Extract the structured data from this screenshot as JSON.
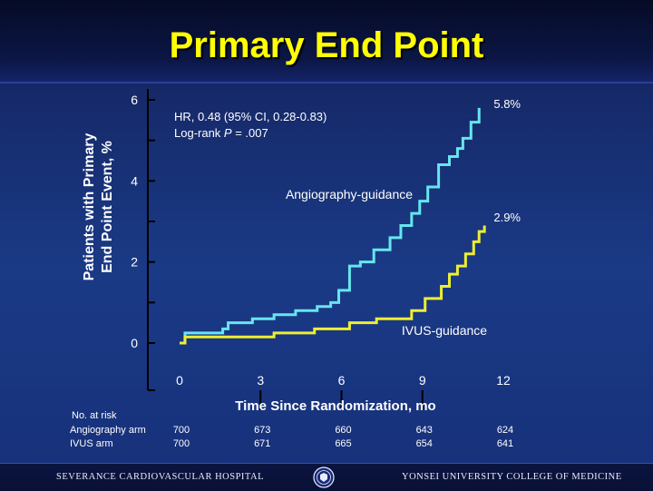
{
  "title": "Primary End Point",
  "footer": {
    "left_text": "SEVERANCE CARDIOVASCULAR HOSPITAL",
    "right_text": "YONSEI UNIVERSITY COLLEGE OF MEDICINE"
  },
  "chart_data": {
    "type": "line",
    "ylabel_lines": [
      "Patients with Primary",
      "End Point Event, %"
    ],
    "xlabel": "Time Since Randomization, mo",
    "xlim": [
      0,
      12
    ],
    "ylim": [
      0,
      6
    ],
    "yticks": [
      0,
      2,
      4,
      6
    ],
    "xticks": [
      0,
      3,
      6,
      9,
      12
    ],
    "grid": false,
    "annotation_lines": [
      "HR, 0.48 (95% CI, 0.28-0.83)",
      "Log-rank ",
      "P",
      " = .007"
    ],
    "series": [
      {
        "name": "Angiography-guidance",
        "end_label": "5.8%",
        "color": "#66e6ee",
        "points": [
          [
            0,
            0
          ],
          [
            0.2,
            0.25
          ],
          [
            1.6,
            0.35
          ],
          [
            1.8,
            0.5
          ],
          [
            2.7,
            0.6
          ],
          [
            3.5,
            0.7
          ],
          [
            4.3,
            0.8
          ],
          [
            5.1,
            0.9
          ],
          [
            5.6,
            1.0
          ],
          [
            5.9,
            1.3
          ],
          [
            6.3,
            1.9
          ],
          [
            6.7,
            2.0
          ],
          [
            7.2,
            2.3
          ],
          [
            7.8,
            2.6
          ],
          [
            8.2,
            2.9
          ],
          [
            8.6,
            3.2
          ],
          [
            8.9,
            3.5
          ],
          [
            9.2,
            3.85
          ],
          [
            9.6,
            4.4
          ],
          [
            10.0,
            4.6
          ],
          [
            10.3,
            4.8
          ],
          [
            10.5,
            5.05
          ],
          [
            10.8,
            5.45
          ],
          [
            11.1,
            5.8
          ]
        ]
      },
      {
        "name": "IVUS-guidance",
        "end_label": "2.9%",
        "color": "#eeee33",
        "points": [
          [
            0,
            0
          ],
          [
            0.2,
            0.15
          ],
          [
            3.5,
            0.25
          ],
          [
            5.0,
            0.35
          ],
          [
            6.3,
            0.5
          ],
          [
            7.3,
            0.6
          ],
          [
            8.6,
            0.8
          ],
          [
            9.1,
            1.1
          ],
          [
            9.7,
            1.4
          ],
          [
            10.0,
            1.7
          ],
          [
            10.3,
            1.9
          ],
          [
            10.6,
            2.2
          ],
          [
            10.9,
            2.5
          ],
          [
            11.1,
            2.75
          ],
          [
            11.3,
            2.9
          ]
        ]
      }
    ],
    "at_risk": {
      "header": "No. at risk",
      "rows": [
        {
          "label": "Angiography arm",
          "values": [
            "700",
            "673",
            "660",
            "643",
            "624"
          ]
        },
        {
          "label": "IVUS arm",
          "values": [
            "700",
            "671",
            "665",
            "654",
            "641"
          ]
        }
      ]
    }
  }
}
